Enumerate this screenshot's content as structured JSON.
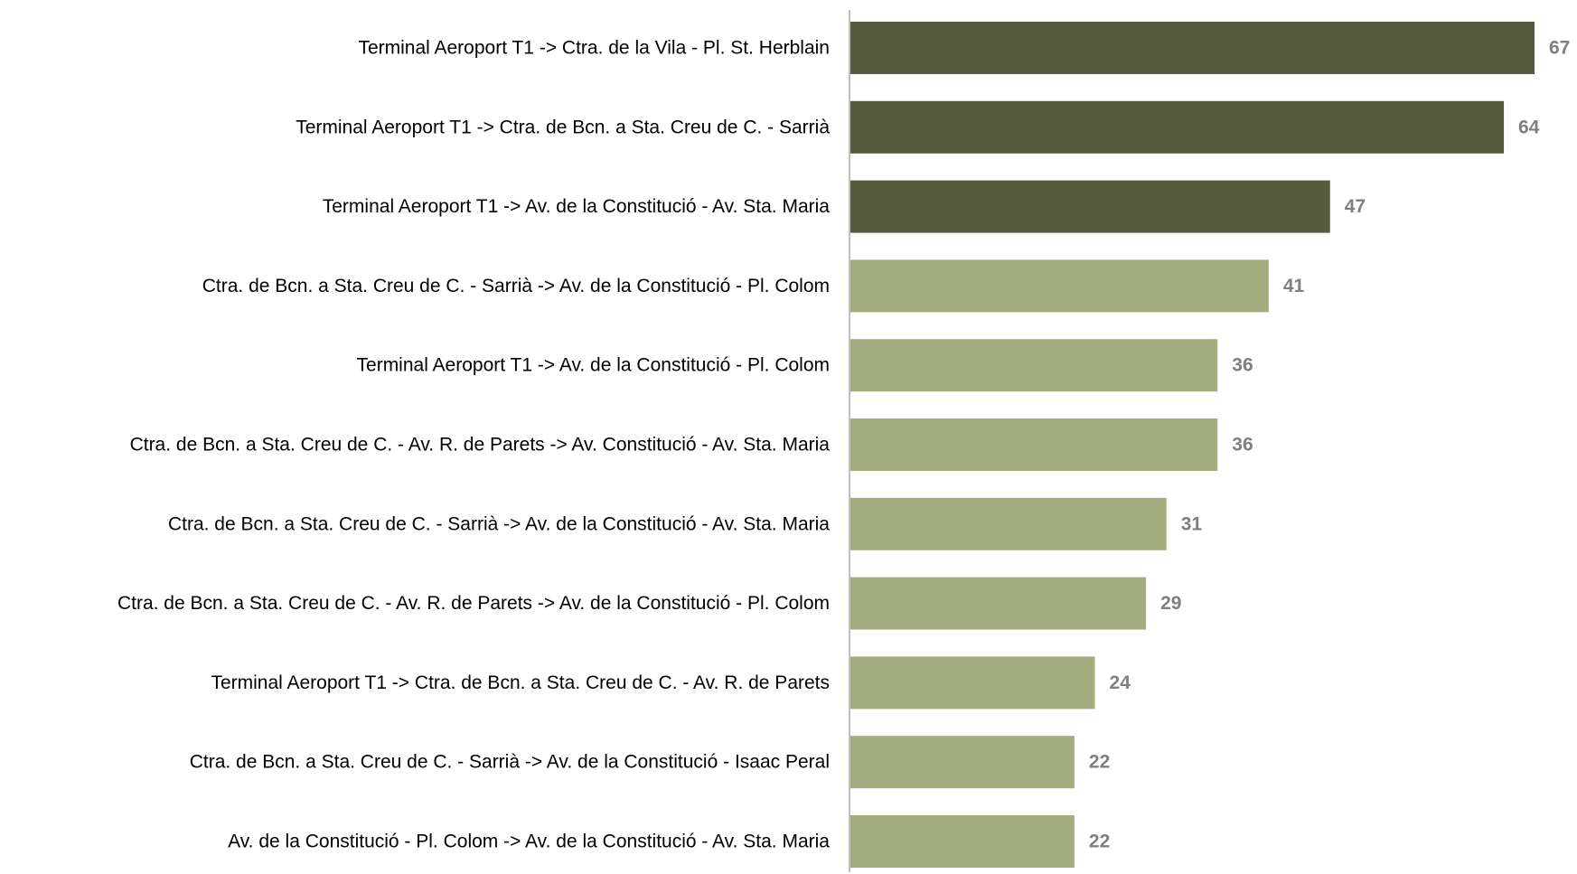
{
  "chart_data": {
    "type": "barh",
    "categories": [
      "Terminal Aeroport T1 -> Ctra. de la Vila -  Pl. St. Herblain",
      "Terminal Aeroport T1 -> Ctra. de Bcn. a Sta. Creu de C. - Sarrià",
      "Terminal Aeroport T1 -> Av. de la Constitució - Av. Sta. Maria",
      "Ctra. de Bcn. a Sta. Creu de C. - Sarrià -> Av. de la Constitució - Pl. Colom",
      "Terminal Aeroport T1 -> Av. de la Constitució - Pl. Colom",
      "Ctra. de Bcn. a Sta. Creu de C. - Av. R. de Parets -> Av. Constitució - Av. Sta. Maria",
      "Ctra. de Bcn. a Sta. Creu de C. - Sarrià -> Av. de la Constitució - Av. Sta. Maria",
      "Ctra. de Bcn. a Sta. Creu de C. - Av. R. de Parets -> Av. de la Constitució - Pl. Colom",
      "Terminal Aeroport T1 -> Ctra. de Bcn. a Sta. Creu de C. - Av. R. de Parets",
      "Ctra. de Bcn. a Sta. Creu de C. - Sarrià -> Av. de la Constitució - Isaac Peral",
      "Av. de la Constitució - Pl. Colom -> Av. de la Constitució - Av. Sta. Maria"
    ],
    "values": [
      67,
      64,
      47,
      41,
      36,
      36,
      31,
      29,
      24,
      22,
      22
    ],
    "colors": [
      "#555b3c",
      "#555b3c",
      "#555b3c",
      "#a4ad80",
      "#a4ad80",
      "#a4ad80",
      "#a4ad80",
      "#a4ad80",
      "#a4ad80",
      "#a4ad80",
      "#a4ad80"
    ]
  }
}
